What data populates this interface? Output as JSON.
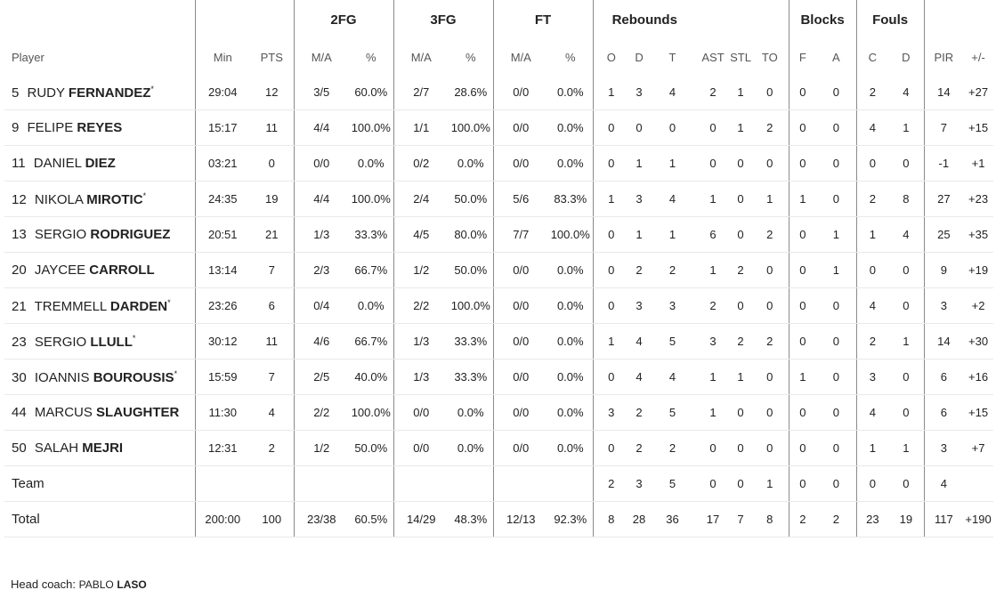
{
  "groups": {
    "two_fg": "2FG",
    "three_fg": "3FG",
    "ft": "FT",
    "rebounds": "Rebounds",
    "blocks": "Blocks",
    "fouls": "Fouls"
  },
  "columns": {
    "player": "Player",
    "min": "Min",
    "pts": "PTS",
    "fg2_ma": "M/A",
    "fg2_pct": "%",
    "fg3_ma": "M/A",
    "fg3_pct": "%",
    "ft_ma": "M/A",
    "ft_pct": "%",
    "reb_o": "O",
    "reb_d": "D",
    "reb_t": "T",
    "ast": "AST",
    "stl": "STL",
    "to": "TO",
    "blk_f": "F",
    "blk_a": "A",
    "foul_c": "C",
    "foul_d": "D",
    "pir": "PIR",
    "pm": "+/-"
  },
  "players": [
    {
      "num": "5",
      "first": "RUDY",
      "last": "FERNANDEZ",
      "star": "*",
      "min": "29:04",
      "pts": "12",
      "fg2_ma": "3/5",
      "fg2_pct": "60.0%",
      "fg3_ma": "2/7",
      "fg3_pct": "28.6%",
      "ft_ma": "0/0",
      "ft_pct": "0.0%",
      "reb_o": "1",
      "reb_d": "3",
      "reb_t": "4",
      "ast": "2",
      "stl": "1",
      "to": "0",
      "blk_f": "0",
      "blk_a": "0",
      "foul_c": "2",
      "foul_d": "4",
      "pir": "14",
      "pm": "+27"
    },
    {
      "num": "9",
      "first": "FELIPE",
      "last": "REYES",
      "star": "",
      "min": "15:17",
      "pts": "11",
      "fg2_ma": "4/4",
      "fg2_pct": "100.0%",
      "fg3_ma": "1/1",
      "fg3_pct": "100.0%",
      "ft_ma": "0/0",
      "ft_pct": "0.0%",
      "reb_o": "0",
      "reb_d": "0",
      "reb_t": "0",
      "ast": "0",
      "stl": "1",
      "to": "2",
      "blk_f": "0",
      "blk_a": "0",
      "foul_c": "4",
      "foul_d": "1",
      "pir": "7",
      "pm": "+15"
    },
    {
      "num": "11",
      "first": "DANIEL",
      "last": "DIEZ",
      "star": "",
      "min": "03:21",
      "pts": "0",
      "fg2_ma": "0/0",
      "fg2_pct": "0.0%",
      "fg3_ma": "0/2",
      "fg3_pct": "0.0%",
      "ft_ma": "0/0",
      "ft_pct": "0.0%",
      "reb_o": "0",
      "reb_d": "1",
      "reb_t": "1",
      "ast": "0",
      "stl": "0",
      "to": "0",
      "blk_f": "0",
      "blk_a": "0",
      "foul_c": "0",
      "foul_d": "0",
      "pir": "-1",
      "pm": "+1"
    },
    {
      "num": "12",
      "first": "NIKOLA",
      "last": "MIROTIC",
      "star": "*",
      "min": "24:35",
      "pts": "19",
      "fg2_ma": "4/4",
      "fg2_pct": "100.0%",
      "fg3_ma": "2/4",
      "fg3_pct": "50.0%",
      "ft_ma": "5/6",
      "ft_pct": "83.3%",
      "reb_o": "1",
      "reb_d": "3",
      "reb_t": "4",
      "ast": "1",
      "stl": "0",
      "to": "1",
      "blk_f": "1",
      "blk_a": "0",
      "foul_c": "2",
      "foul_d": "8",
      "pir": "27",
      "pm": "+23"
    },
    {
      "num": "13",
      "first": "SERGIO",
      "last": "RODRIGUEZ",
      "star": "",
      "min": "20:51",
      "pts": "21",
      "fg2_ma": "1/3",
      "fg2_pct": "33.3%",
      "fg3_ma": "4/5",
      "fg3_pct": "80.0%",
      "ft_ma": "7/7",
      "ft_pct": "100.0%",
      "reb_o": "0",
      "reb_d": "1",
      "reb_t": "1",
      "ast": "6",
      "stl": "0",
      "to": "2",
      "blk_f": "0",
      "blk_a": "1",
      "foul_c": "1",
      "foul_d": "4",
      "pir": "25",
      "pm": "+35"
    },
    {
      "num": "20",
      "first": "JAYCEE",
      "last": "CARROLL",
      "star": "",
      "min": "13:14",
      "pts": "7",
      "fg2_ma": "2/3",
      "fg2_pct": "66.7%",
      "fg3_ma": "1/2",
      "fg3_pct": "50.0%",
      "ft_ma": "0/0",
      "ft_pct": "0.0%",
      "reb_o": "0",
      "reb_d": "2",
      "reb_t": "2",
      "ast": "1",
      "stl": "2",
      "to": "0",
      "blk_f": "0",
      "blk_a": "1",
      "foul_c": "0",
      "foul_d": "0",
      "pir": "9",
      "pm": "+19"
    },
    {
      "num": "21",
      "first": "TREMMELL",
      "last": "DARDEN",
      "star": "*",
      "min": "23:26",
      "pts": "6",
      "fg2_ma": "0/4",
      "fg2_pct": "0.0%",
      "fg3_ma": "2/2",
      "fg3_pct": "100.0%",
      "ft_ma": "0/0",
      "ft_pct": "0.0%",
      "reb_o": "0",
      "reb_d": "3",
      "reb_t": "3",
      "ast": "2",
      "stl": "0",
      "to": "0",
      "blk_f": "0",
      "blk_a": "0",
      "foul_c": "4",
      "foul_d": "0",
      "pir": "3",
      "pm": "+2"
    },
    {
      "num": "23",
      "first": "SERGIO",
      "last": "LLULL",
      "star": "*",
      "min": "30:12",
      "pts": "11",
      "fg2_ma": "4/6",
      "fg2_pct": "66.7%",
      "fg3_ma": "1/3",
      "fg3_pct": "33.3%",
      "ft_ma": "0/0",
      "ft_pct": "0.0%",
      "reb_o": "1",
      "reb_d": "4",
      "reb_t": "5",
      "ast": "3",
      "stl": "2",
      "to": "2",
      "blk_f": "0",
      "blk_a": "0",
      "foul_c": "2",
      "foul_d": "1",
      "pir": "14",
      "pm": "+30"
    },
    {
      "num": "30",
      "first": "IOANNIS",
      "last": "BOUROUSIS",
      "star": "*",
      "min": "15:59",
      "pts": "7",
      "fg2_ma": "2/5",
      "fg2_pct": "40.0%",
      "fg3_ma": "1/3",
      "fg3_pct": "33.3%",
      "ft_ma": "0/0",
      "ft_pct": "0.0%",
      "reb_o": "0",
      "reb_d": "4",
      "reb_t": "4",
      "ast": "1",
      "stl": "1",
      "to": "0",
      "blk_f": "1",
      "blk_a": "0",
      "foul_c": "3",
      "foul_d": "0",
      "pir": "6",
      "pm": "+16"
    },
    {
      "num": "44",
      "first": "MARCUS",
      "last": "SLAUGHTER",
      "star": "",
      "min": "11:30",
      "pts": "4",
      "fg2_ma": "2/2",
      "fg2_pct": "100.0%",
      "fg3_ma": "0/0",
      "fg3_pct": "0.0%",
      "ft_ma": "0/0",
      "ft_pct": "0.0%",
      "reb_o": "3",
      "reb_d": "2",
      "reb_t": "5",
      "ast": "1",
      "stl": "0",
      "to": "0",
      "blk_f": "0",
      "blk_a": "0",
      "foul_c": "4",
      "foul_d": "0",
      "pir": "6",
      "pm": "+15"
    },
    {
      "num": "50",
      "first": "SALAH",
      "last": "MEJRI",
      "star": "",
      "min": "12:31",
      "pts": "2",
      "fg2_ma": "1/2",
      "fg2_pct": "50.0%",
      "fg3_ma": "0/0",
      "fg3_pct": "0.0%",
      "ft_ma": "0/0",
      "ft_pct": "0.0%",
      "reb_o": "0",
      "reb_d": "2",
      "reb_t": "2",
      "ast": "0",
      "stl": "0",
      "to": "0",
      "blk_f": "0",
      "blk_a": "0",
      "foul_c": "1",
      "foul_d": "1",
      "pir": "3",
      "pm": "+7"
    }
  ],
  "team": {
    "label": "Team",
    "reb_o": "2",
    "reb_d": "3",
    "reb_t": "5",
    "ast": "0",
    "stl": "0",
    "to": "1",
    "blk_f": "0",
    "blk_a": "0",
    "foul_c": "0",
    "foul_d": "0",
    "pir": "4"
  },
  "total": {
    "label": "Total",
    "min": "200:00",
    "pts": "100",
    "fg2_ma": "23/38",
    "fg2_pct": "60.5%",
    "fg3_ma": "14/29",
    "fg3_pct": "48.3%",
    "ft_ma": "12/13",
    "ft_pct": "92.3%",
    "reb_o": "8",
    "reb_d": "28",
    "reb_t": "36",
    "ast": "17",
    "stl": "7",
    "to": "8",
    "blk_f": "2",
    "blk_a": "2",
    "foul_c": "23",
    "foul_d": "19",
    "pir": "117",
    "pm": "+190"
  },
  "coach": {
    "label": "Head coach:",
    "first": "PABLO",
    "last": "LASO"
  }
}
